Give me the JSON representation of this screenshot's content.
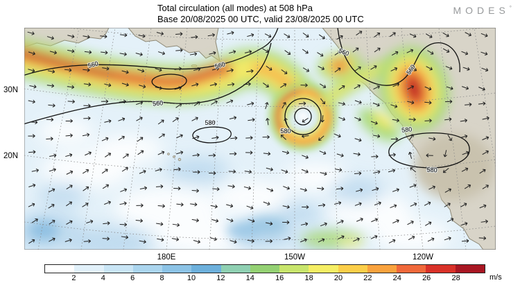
{
  "header": {
    "title_line1": "Total circulation (all modes) at 508 hPa",
    "title_line2": "Base 20/08/2025 00 UTC, valid 23/08/2025 00 UTC",
    "logo": {
      "text": "MODES",
      "mark": "°"
    }
  },
  "map": {
    "lat_labels": [
      {
        "text": "30N"
      },
      {
        "text": "20N"
      }
    ],
    "lon_labels": [
      {
        "text": "180E"
      },
      {
        "text": "150W"
      },
      {
        "text": "120W"
      }
    ]
  },
  "chart_data": {
    "type": "heatmap",
    "title": "Total circulation (all modes) at 508 hPa",
    "subtitle": "Base 20/08/2025 00 UTC, valid 23/08/2025 00 UTC",
    "unit": "m/s",
    "lat_ticks": [
      "30N",
      "20N"
    ],
    "lon_ticks": [
      "180E",
      "150W",
      "120W"
    ],
    "contour_values": [
      560,
      580
    ],
    "contour_labels": [
      "560",
      "560",
      "560",
      "560",
      "560",
      "580",
      "580",
      "580",
      "580"
    ],
    "colorbar": {
      "unit": "m/s",
      "position": "bottom",
      "ticks": [
        "2",
        "4",
        "6",
        "8",
        "10",
        "12",
        "14",
        "16",
        "18",
        "20",
        "22",
        "24",
        "26",
        "28"
      ],
      "colors": [
        "#ffffff",
        "#e2f1fa",
        "#c9e5f5",
        "#abd5ee",
        "#8cc3e6",
        "#6db0dc",
        "#8fd0b2",
        "#94d173",
        "#c8e56c",
        "#f5ee64",
        "#fbce49",
        "#f9a23d",
        "#f0683a",
        "#d93128",
        "#a81622"
      ]
    }
  }
}
